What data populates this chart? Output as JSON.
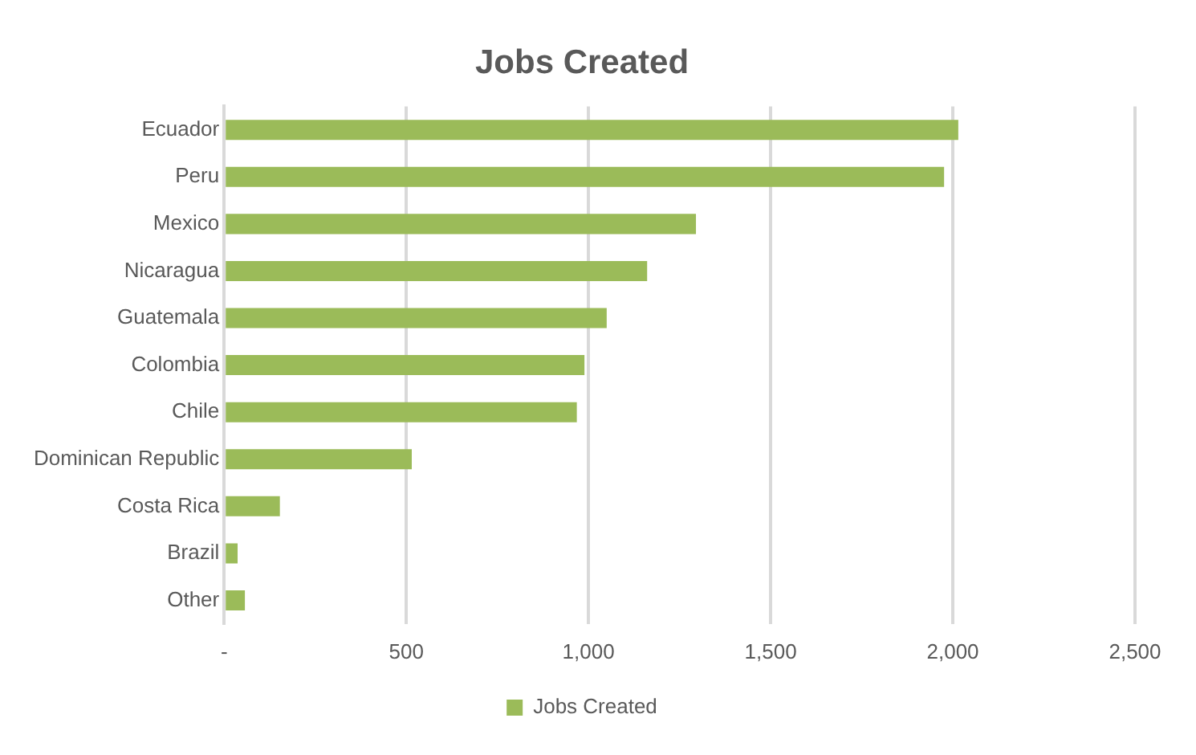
{
  "chart_data": {
    "type": "bar",
    "orientation": "horizontal",
    "title": "Jobs Created",
    "categories": [
      "Ecuador",
      "Peru",
      "Mexico",
      "Nicaragua",
      "Guatemala",
      "Colombia",
      "Chile",
      "Dominican Republic",
      "Costa Rica",
      "Brazil",
      "Other"
    ],
    "series": [
      {
        "name": "Jobs Created",
        "color": "#9bbb59",
        "values": [
          2015,
          1976,
          1295,
          1161,
          1050,
          989,
          968,
          515,
          153,
          37,
          57
        ]
      }
    ],
    "xlim": [
      0,
      2500
    ],
    "xticks": [
      {
        "value": 0,
        "label": "-"
      },
      {
        "value": 500,
        "label": "500"
      },
      {
        "value": 1000,
        "label": "1,000"
      },
      {
        "value": 1500,
        "label": "1,500"
      },
      {
        "value": 2000,
        "label": "2,000"
      },
      {
        "value": 2500,
        "label": "2,500"
      }
    ],
    "grid": "x",
    "legend": "bottom"
  }
}
